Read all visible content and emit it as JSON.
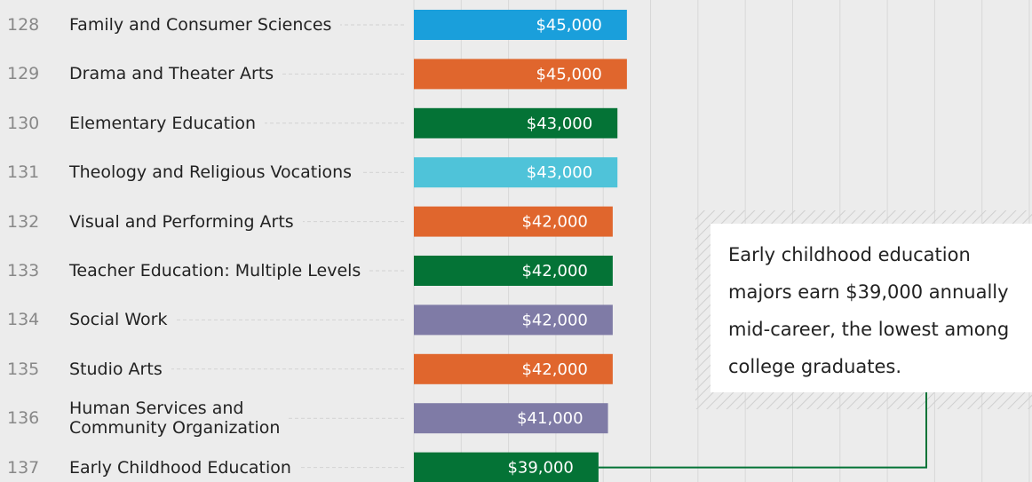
{
  "chart_data": {
    "type": "bar",
    "ranks": [
      "128",
      "129",
      "130",
      "131",
      "132",
      "133",
      "134",
      "135",
      "136",
      "137"
    ],
    "categories": [
      "Family and Consumer Sciences",
      "Drama and Theater Arts",
      "Elementary Education",
      "Theology and Religious Vocations",
      "Visual and Performing Arts",
      "Teacher Education: Multiple Levels",
      "Social Work",
      "Studio Arts",
      "Human Services and\nCommunity Organization",
      "Early Childhood Education"
    ],
    "values": [
      45000,
      45000,
      43000,
      43000,
      42000,
      42000,
      42000,
      42000,
      41000,
      39000
    ],
    "value_labels": [
      "$45,000",
      "$45,000",
      "$43,000",
      "$43,000",
      "$42,000",
      "$42,000",
      "$42,000",
      "$42,000",
      "$41,000",
      "$39,000"
    ],
    "colors": [
      "#1a9fdb",
      "#e0662d",
      "#047336",
      "#4fc3d9",
      "#e0662d",
      "#047336",
      "#7f7ba6",
      "#e0662d",
      "#7f7ba6",
      "#047336"
    ],
    "xlim": [
      0,
      130000
    ],
    "xticks": [
      0,
      10000,
      20000,
      30000,
      40000,
      50000,
      60000,
      70000,
      80000,
      90000,
      100000,
      110000,
      120000,
      130000
    ],
    "grid": true,
    "annotation": [
      "Early childhood education",
      "majors earn $39,000 annually",
      "mid-career, the lowest among",
      "college graduates."
    ],
    "annotation_color": "#047336"
  }
}
